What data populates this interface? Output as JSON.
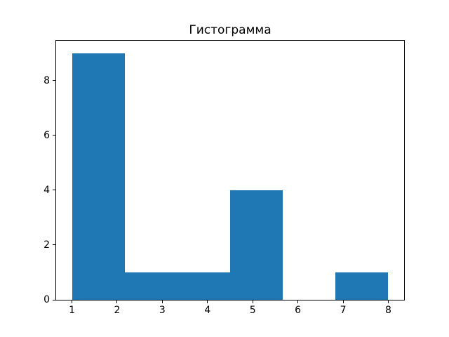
{
  "figure": {
    "background": "#ffffff",
    "axes_background": "#ffffff",
    "spine_color": "#000000",
    "text_color": "#000000"
  },
  "chart_data": {
    "type": "bar",
    "subtype": "histogram",
    "title": "Гистограмма",
    "xlabel": "",
    "ylabel": "",
    "bin_edges": [
      1,
      2.167,
      3.333,
      4.5,
      5.667,
      6.833,
      8
    ],
    "counts": [
      9,
      1,
      1,
      4,
      0,
      1
    ],
    "bar_color": "#1f77b4",
    "xlim": [
      0.65,
      8.35
    ],
    "ylim": [
      0,
      9.45
    ],
    "x_ticks": [
      "1",
      "2",
      "3",
      "4",
      "5",
      "6",
      "7",
      "8"
    ],
    "x_tick_values": [
      1,
      2,
      3,
      4,
      5,
      6,
      7,
      8
    ],
    "y_ticks": [
      "0",
      "2",
      "4",
      "6",
      "8"
    ],
    "y_tick_values": [
      0,
      2,
      4,
      6,
      8
    ],
    "grid": false,
    "legend": null
  }
}
